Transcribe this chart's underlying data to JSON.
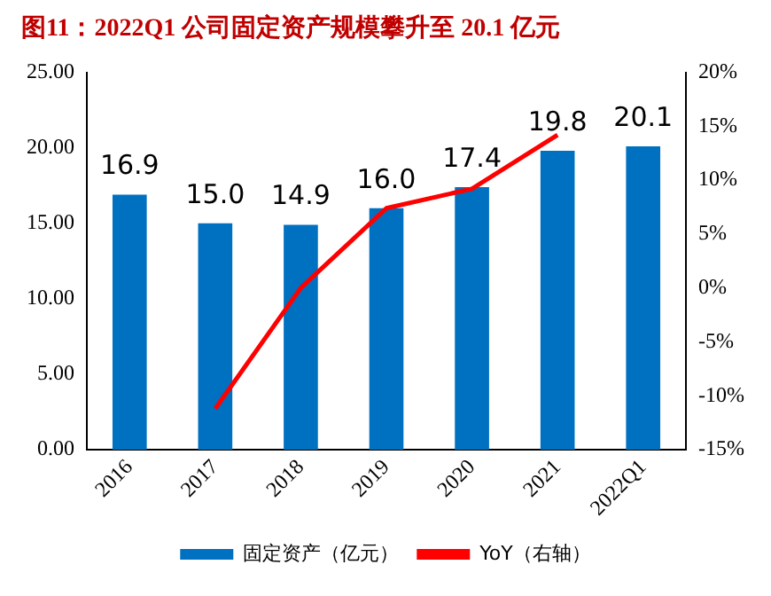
{
  "chart_data": {
    "type": "bar",
    "title": "图11：2022Q1 公司固定资产规模攀升至 20.1 亿元",
    "categories": [
      "2016",
      "2017",
      "2018",
      "2019",
      "2020",
      "2021",
      "2022Q1"
    ],
    "series": [
      {
        "name": "固定资产（亿元）",
        "color": "#0070c0",
        "values": [
          16.9,
          15.0,
          14.9,
          16.0,
          17.4,
          19.8,
          20.1
        ],
        "value_labels": [
          "16.9",
          "15.0",
          "14.9",
          "16.0",
          "17.4",
          "19.8",
          "20.1"
        ]
      },
      {
        "name": "YoY（右轴）",
        "type": "line",
        "axis": "y2",
        "color": "#ff0000",
        "values": [
          null,
          -11.2,
          0,
          7.4,
          9.2,
          14.2,
          null
        ]
      }
    ],
    "ylim": [
      0,
      25
    ],
    "yticks": [
      {
        "value": 0,
        "label": "0.00"
      },
      {
        "value": 5,
        "label": "5.00"
      },
      {
        "value": 10,
        "label": "10.00"
      },
      {
        "value": 15,
        "label": "15.00"
      },
      {
        "value": 20,
        "label": "20.00"
      },
      {
        "value": 25,
        "label": "25.00"
      }
    ],
    "y2lim": [
      -15,
      20
    ],
    "y2ticks": [
      {
        "value": -15,
        "label": "-15%"
      },
      {
        "value": -10,
        "label": "-10%"
      },
      {
        "value": -5,
        "label": "-5%"
      },
      {
        "value": 0,
        "label": "0%"
      },
      {
        "value": 5,
        "label": "5%"
      },
      {
        "value": 10,
        "label": "10%"
      },
      {
        "value": 15,
        "label": "15%"
      },
      {
        "value": 20,
        "label": "20%"
      }
    ],
    "legend": "bottom",
    "grid": false,
    "marker": "none",
    "line_style": "solid"
  }
}
